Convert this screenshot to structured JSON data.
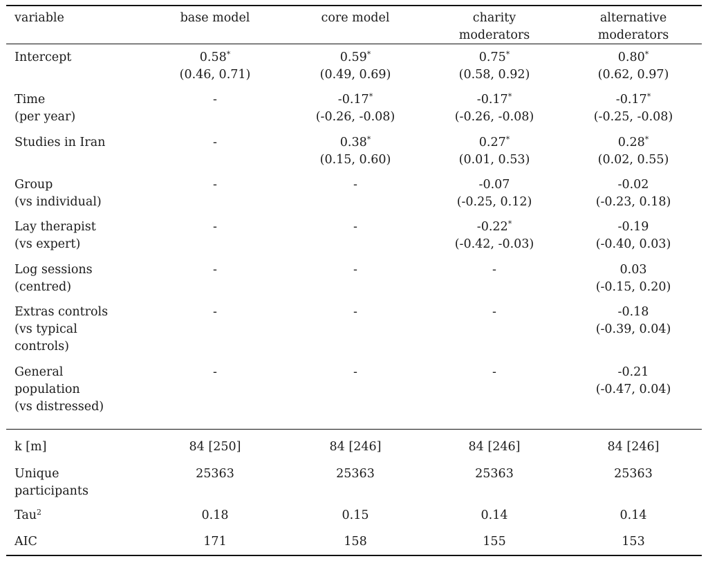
{
  "table": {
    "header": {
      "label": "variable",
      "columns": [
        [
          "base model"
        ],
        [
          "core model"
        ],
        [
          "charity",
          "moderators"
        ],
        [
          "alternative",
          "moderators"
        ]
      ]
    },
    "coef_rows": [
      {
        "label": [
          "Intercept"
        ],
        "cells": [
          {
            "est": "0.58",
            "star": "*",
            "ci": "(0.46, 0.71)"
          },
          {
            "est": "0.59",
            "star": "*",
            "ci": "(0.49, 0.69)"
          },
          {
            "est": "0.75",
            "star": "*",
            "ci": "(0.58, 0.92)"
          },
          {
            "est": "0.80",
            "star": "*",
            "ci": "(0.62, 0.97)"
          }
        ]
      },
      {
        "label": [
          "Time",
          "(per year)"
        ],
        "cells": [
          {
            "est": "-",
            "star": "",
            "ci": ""
          },
          {
            "est": "-0.17",
            "star": "*",
            "ci": "(-0.26, -0.08)"
          },
          {
            "est": "-0.17",
            "star": "*",
            "ci": "(-0.26, -0.08)"
          },
          {
            "est": "-0.17",
            "star": "*",
            "ci": "(-0.25, -0.08)"
          }
        ]
      },
      {
        "label": [
          "Studies in Iran"
        ],
        "cells": [
          {
            "est": "-",
            "star": "",
            "ci": ""
          },
          {
            "est": "0.38",
            "star": "*",
            "ci": "(0.15, 0.60)"
          },
          {
            "est": "0.27",
            "star": "*",
            "ci": "(0.01, 0.53)"
          },
          {
            "est": "0.28",
            "star": "*",
            "ci": "(0.02, 0.55)"
          }
        ]
      },
      {
        "label": [
          "Group",
          "(vs individual)"
        ],
        "cells": [
          {
            "est": "-",
            "star": "",
            "ci": ""
          },
          {
            "est": "-",
            "star": "",
            "ci": ""
          },
          {
            "est": "-0.07",
            "star": "",
            "ci": "(-0.25, 0.12)"
          },
          {
            "est": "-0.02",
            "star": "",
            "ci": "(-0.23, 0.18)"
          }
        ]
      },
      {
        "label": [
          "Lay therapist",
          "(vs expert)"
        ],
        "cells": [
          {
            "est": "-",
            "star": "",
            "ci": ""
          },
          {
            "est": "-",
            "star": "",
            "ci": ""
          },
          {
            "est": "-0.22",
            "star": "*",
            "ci": "(-0.42, -0.03)"
          },
          {
            "est": "-0.19",
            "star": "",
            "ci": "(-0.40, 0.03)"
          }
        ]
      },
      {
        "label": [
          "Log sessions",
          "(centred)"
        ],
        "cells": [
          {
            "est": "-",
            "star": "",
            "ci": ""
          },
          {
            "est": "-",
            "star": "",
            "ci": ""
          },
          {
            "est": "-",
            "star": "",
            "ci": ""
          },
          {
            "est": "0.03",
            "star": "",
            "ci": "(-0.15, 0.20)"
          }
        ]
      },
      {
        "label": [
          "Extras controls",
          "(vs typical",
          "controls)"
        ],
        "cells": [
          {
            "est": "-",
            "star": "",
            "ci": ""
          },
          {
            "est": "-",
            "star": "",
            "ci": ""
          },
          {
            "est": "-",
            "star": "",
            "ci": ""
          },
          {
            "est": "-0.18",
            "star": "",
            "ci": "(-0.39, 0.04)"
          }
        ]
      },
      {
        "label": [
          "General",
          "population",
          "(vs distressed)"
        ],
        "cells": [
          {
            "est": "-",
            "star": "",
            "ci": ""
          },
          {
            "est": "-",
            "star": "",
            "ci": ""
          },
          {
            "est": "-",
            "star": "",
            "ci": ""
          },
          {
            "est": "-0.21",
            "star": "",
            "ci": "(-0.47, 0.04)"
          }
        ]
      }
    ],
    "fit_rows": [
      {
        "label": [
          "k [m]"
        ],
        "sup": "",
        "values": [
          "84 [250]",
          "84 [246]",
          "84 [246]",
          "84 [246]"
        ]
      },
      {
        "label": [
          "Unique",
          "participants"
        ],
        "sup": "",
        "values": [
          "25363",
          "25363",
          "25363",
          "25363"
        ]
      },
      {
        "label": [
          "Tau"
        ],
        "sup": "2",
        "values": [
          "0.18",
          "0.15",
          "0.14",
          "0.14"
        ]
      },
      {
        "label": [
          "AIC"
        ],
        "sup": "",
        "values": [
          "171",
          "158",
          "155",
          "153"
        ]
      }
    ]
  }
}
